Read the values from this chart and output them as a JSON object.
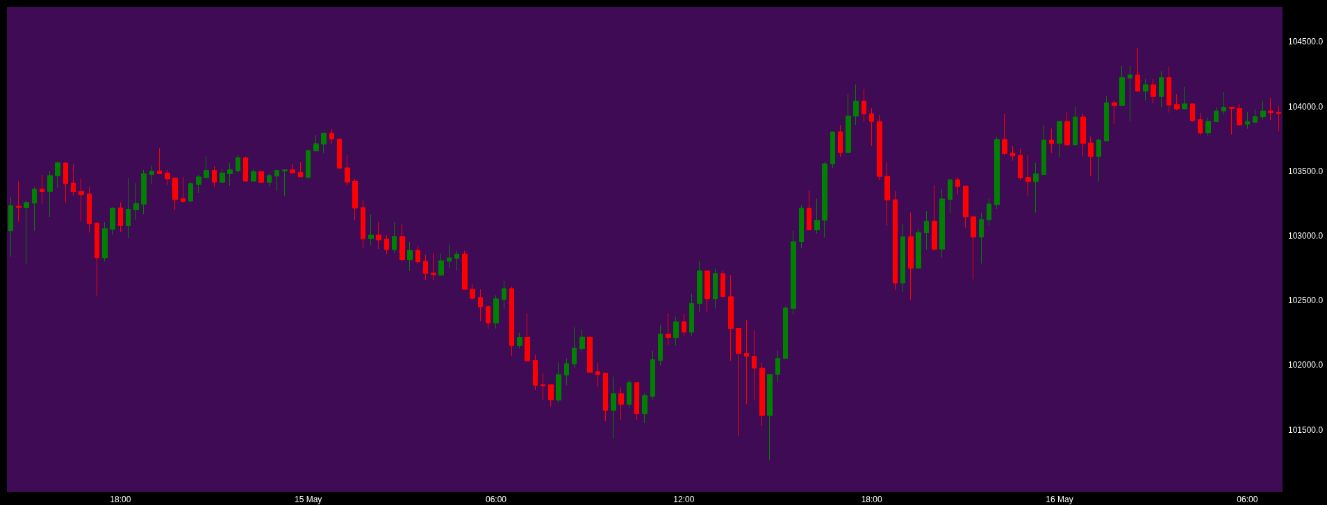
{
  "chart_data": {
    "type": "candlestick",
    "categories": [
      null,
      null,
      null,
      null,
      null,
      null,
      null,
      null,
      null,
      null,
      null,
      null,
      null,
      null,
      "18:00",
      null,
      null,
      null,
      null,
      null,
      null,
      null,
      null,
      null,
      null,
      null,
      null,
      null,
      null,
      null,
      null,
      null,
      null,
      null,
      null,
      null,
      null,
      null,
      "15 May",
      null,
      null,
      null,
      null,
      null,
      null,
      null,
      null,
      null,
      null,
      null,
      null,
      null,
      null,
      null,
      null,
      null,
      null,
      null,
      null,
      null,
      null,
      null,
      "06:00",
      null,
      null,
      null,
      null,
      null,
      null,
      null,
      null,
      null,
      null,
      null,
      null,
      null,
      null,
      null,
      null,
      null,
      null,
      null,
      null,
      null,
      null,
      null,
      "12:00",
      null,
      null,
      null,
      null,
      null,
      null,
      null,
      null,
      null,
      null,
      null,
      null,
      null,
      null,
      null,
      null,
      null,
      null,
      null,
      null,
      null,
      null,
      null,
      "18:00",
      null,
      null,
      null,
      null,
      null,
      null,
      null,
      null,
      null,
      null,
      null,
      null,
      null,
      null,
      null,
      null,
      null,
      null,
      null,
      null,
      null,
      null,
      null,
      "16 May",
      null,
      null,
      null,
      null,
      null,
      null,
      null,
      null,
      null,
      null,
      null,
      null,
      null,
      null,
      null,
      null,
      null,
      null,
      null,
      null,
      null,
      null,
      null,
      "06:00",
      null,
      null,
      null,
      null
    ],
    "ohlc": [
      [
        103039,
        103298,
        102839,
        103233
      ],
      [
        103229,
        103421,
        103110,
        103219
      ],
      [
        103217,
        103268,
        102778,
        103258
      ],
      [
        103253,
        103377,
        103039,
        103361
      ],
      [
        103361,
        103472,
        103249,
        103340
      ],
      [
        103342,
        103502,
        103144,
        103466
      ],
      [
        103464,
        103575,
        103373,
        103565
      ],
      [
        103563,
        103570,
        103255,
        103405
      ],
      [
        103407,
        103553,
        103308,
        103340
      ],
      [
        103344,
        103442,
        103110,
        103318
      ],
      [
        103324,
        103381,
        103025,
        103094
      ],
      [
        103098,
        103106,
        102537,
        102829
      ],
      [
        102829,
        103106,
        102804,
        103055
      ],
      [
        103051,
        103221,
        103007,
        103213
      ],
      [
        103215,
        103258,
        103031,
        103077
      ],
      [
        103077,
        103446,
        102982,
        103205
      ],
      [
        103201,
        103407,
        103124,
        103249
      ],
      [
        103245,
        103510,
        103165,
        103480
      ],
      [
        103474,
        103545,
        103403,
        103500
      ],
      [
        103500,
        103678,
        103478,
        103480
      ],
      [
        103486,
        103510,
        103391,
        103440
      ],
      [
        103446,
        103450,
        103201,
        103280
      ],
      [
        103288,
        103452,
        103255,
        103266
      ],
      [
        103268,
        103415,
        103264,
        103403
      ],
      [
        103397,
        103470,
        103332,
        103456
      ],
      [
        103450,
        103615,
        103442,
        103506
      ],
      [
        103506,
        103539,
        103377,
        103415
      ],
      [
        103413,
        103516,
        103413,
        103486
      ],
      [
        103480,
        103565,
        103387,
        103510
      ],
      [
        103502,
        103628,
        103490,
        103605
      ],
      [
        103603,
        103615,
        103420,
        103423
      ],
      [
        103423,
        103516,
        103417,
        103496
      ],
      [
        103496,
        103500,
        103407,
        103413
      ],
      [
        103413,
        103480,
        103383,
        103466
      ],
      [
        103462,
        103510,
        103347,
        103506
      ],
      [
        103502,
        103510,
        103308,
        103510
      ],
      [
        103510,
        103555,
        103486,
        103486
      ],
      [
        103490,
        103569,
        103456,
        103456
      ],
      [
        103452,
        103668,
        103442,
        103660
      ],
      [
        103656,
        103779,
        103656,
        103713
      ],
      [
        103709,
        103798,
        103640,
        103793
      ],
      [
        103793,
        103826,
        103709,
        103749
      ],
      [
        103749,
        103749,
        103522,
        103522
      ],
      [
        103526,
        103624,
        103387,
        103415
      ],
      [
        103421,
        103442,
        103120,
        103215
      ],
      [
        103219,
        103272,
        102908,
        102978
      ],
      [
        102978,
        103164,
        102926,
        103005
      ],
      [
        103005,
        103106,
        102898,
        102968
      ],
      [
        102976,
        103005,
        102857,
        102893
      ],
      [
        102893,
        103106,
        102867,
        102995
      ],
      [
        102995,
        103094,
        102809,
        102814
      ],
      [
        102814,
        102952,
        102728,
        102889
      ],
      [
        102889,
        102920,
        102784,
        102798
      ],
      [
        102804,
        102853,
        102659,
        102709
      ],
      [
        102711,
        102869,
        102655,
        102699
      ],
      [
        102695,
        102863,
        102695,
        102807
      ],
      [
        102804,
        102932,
        102748,
        102829
      ],
      [
        102827,
        102883,
        102730,
        102859
      ],
      [
        102859,
        102883,
        102584,
        102586
      ],
      [
        102586,
        102626,
        102501,
        102517
      ],
      [
        102523,
        102586,
        102339,
        102451
      ],
      [
        102453,
        102463,
        102279,
        102325
      ],
      [
        102325,
        102540,
        102283,
        102513
      ],
      [
        102507,
        102651,
        102434,
        102592
      ],
      [
        102592,
        102606,
        102072,
        102151
      ],
      [
        102151,
        102250,
        102131,
        102214
      ],
      [
        102214,
        102402,
        102032,
        102032
      ],
      [
        102036,
        102082,
        101809,
        101844
      ],
      [
        101848,
        101939,
        101726,
        101840
      ],
      [
        101848,
        101848,
        101676,
        101731
      ],
      [
        101729,
        102022,
        101710,
        101927
      ],
      [
        101923,
        102052,
        101844,
        102012
      ],
      [
        102008,
        102293,
        101979,
        102131
      ],
      [
        102127,
        102275,
        102105,
        102216
      ],
      [
        102216,
        102216,
        101943,
        101943
      ],
      [
        101949,
        102018,
        101834,
        101927
      ],
      [
        101937,
        101943,
        101567,
        101650
      ],
      [
        101650,
        101911,
        101429,
        101779
      ],
      [
        101779,
        101828,
        101577,
        101696
      ],
      [
        101696,
        101884,
        101670,
        101864
      ],
      [
        101864,
        101864,
        101577,
        101623
      ],
      [
        101623,
        101781,
        101551,
        101765
      ],
      [
        101759,
        102111,
        101735,
        102042
      ],
      [
        102036,
        102309,
        101998,
        102240
      ],
      [
        102240,
        102402,
        102157,
        102214
      ],
      [
        102212,
        102374,
        102152,
        102335
      ],
      [
        102335,
        102399,
        102223,
        102255
      ],
      [
        102255,
        102550,
        102223,
        102477
      ],
      [
        102477,
        102800,
        102412,
        102729
      ],
      [
        102729,
        102729,
        102412,
        102513
      ],
      [
        102513,
        102746,
        102438,
        102707
      ],
      [
        102707,
        102729,
        102529,
        102529
      ],
      [
        102529,
        102696,
        102034,
        102283
      ],
      [
        102283,
        102283,
        101453,
        102090
      ],
      [
        102090,
        102352,
        101696,
        102068
      ],
      [
        102068,
        102270,
        101733,
        101976
      ],
      [
        101976,
        102019,
        101530,
        101610
      ],
      [
        101610,
        101928,
        101266,
        101928
      ],
      [
        101928,
        102115,
        101868,
        102051
      ],
      [
        102051,
        102455,
        102051,
        102442
      ],
      [
        102438,
        103040,
        102391,
        102954
      ],
      [
        102954,
        103238,
        102905,
        103213
      ],
      [
        103213,
        103352,
        103045,
        103045
      ],
      [
        103045,
        103288,
        103015,
        103120
      ],
      [
        103120,
        103567,
        102987,
        103557
      ],
      [
        103557,
        103804,
        103524,
        103804
      ],
      [
        103804,
        103858,
        103610,
        103643
      ],
      [
        103643,
        104099,
        103643,
        103927
      ],
      [
        103927,
        104170,
        103858,
        104041
      ],
      [
        104041,
        104137,
        103884,
        103944
      ],
      [
        103944,
        103987,
        103696,
        103884
      ],
      [
        103884,
        103933,
        103432,
        103460
      ],
      [
        103460,
        103567,
        103077,
        103277
      ],
      [
        103279,
        103348,
        102580,
        102635
      ],
      [
        102635,
        103090,
        102564,
        102993
      ],
      [
        102993,
        103179,
        102502,
        102749
      ],
      [
        102749,
        103053,
        102742,
        103026
      ],
      [
        103024,
        103192,
        102893,
        103112
      ],
      [
        103112,
        103392,
        102882,
        102897
      ],
      [
        102897,
        103359,
        102831,
        103285
      ],
      [
        103281,
        103434,
        103175,
        103434
      ],
      [
        103434,
        103452,
        103319,
        103381
      ],
      [
        103385,
        103385,
        103064,
        103146
      ],
      [
        103148,
        103148,
        102664,
        102990
      ],
      [
        102990,
        103179,
        102786,
        103126
      ],
      [
        103124,
        103286,
        103081,
        103246
      ],
      [
        103241,
        103767,
        103208,
        103745
      ],
      [
        103745,
        103945,
        103623,
        103636
      ],
      [
        103641,
        103696,
        103581,
        103618
      ],
      [
        103623,
        103674,
        103434,
        103448
      ],
      [
        103452,
        103623,
        103308,
        103419
      ],
      [
        103419,
        103563,
        103179,
        103479
      ],
      [
        103474,
        103856,
        103474,
        103740
      ],
      [
        103740,
        103829,
        103641,
        103714
      ],
      [
        103714,
        103885,
        103607,
        103885
      ],
      [
        103885,
        103956,
        103703,
        103703
      ],
      [
        103703,
        104000,
        103703,
        103918
      ],
      [
        103918,
        103945,
        103618,
        103714
      ],
      [
        103718,
        103769,
        103459,
        103614
      ],
      [
        103614,
        103751,
        103419,
        103740
      ],
      [
        103734,
        104080,
        103734,
        104029
      ],
      [
        104029,
        104047,
        103862,
        104007
      ],
      [
        104007,
        104314,
        104007,
        104224
      ],
      [
        104219,
        104314,
        103885,
        104244
      ],
      [
        104244,
        104451,
        104115,
        104120
      ],
      [
        104120,
        104214,
        104047,
        104169
      ],
      [
        104169,
        104214,
        104022,
        104077
      ],
      [
        104077,
        104272,
        103995,
        104224
      ],
      [
        104224,
        104306,
        103952,
        104010
      ],
      [
        104015,
        104095,
        103970,
        103982
      ],
      [
        103982,
        104152,
        103977,
        104020
      ],
      [
        104020,
        104020,
        103883,
        103890
      ],
      [
        103898,
        103948,
        103778,
        103795
      ],
      [
        103795,
        103915,
        103773,
        103885
      ],
      [
        103883,
        103995,
        103878,
        103965
      ],
      [
        103965,
        104110,
        103933,
        103995
      ],
      [
        103995,
        103995,
        103783,
        103985
      ],
      [
        103985,
        104022,
        103853,
        103858
      ],
      [
        103863,
        103957,
        103828,
        103883
      ],
      [
        103878,
        103977,
        103873,
        103923
      ],
      [
        103920,
        104045,
        103898,
        103965
      ],
      [
        103965,
        104065,
        103895,
        103952
      ],
      [
        103955,
        104002,
        103808,
        103945
      ]
    ],
    "colors": [
      "#008000",
      "#ff0000",
      "#008000",
      "#008000",
      "#ff0000",
      "#008000",
      "#008000",
      "#ff0000",
      "#ff0000",
      "#ff0000",
      "#ff0000",
      "#ff0000",
      "#008000",
      "#008000",
      "#ff0000",
      "#008000",
      "#008000",
      "#008000",
      "#008000",
      "#ff0000",
      "#ff0000",
      "#ff0000",
      "#ff0000",
      "#008000",
      "#008000",
      "#008000",
      "#ff0000",
      "#008000",
      "#008000",
      "#008000",
      "#ff0000",
      "#008000",
      "#ff0000",
      "#008000",
      "#008000",
      "#008000",
      "#ff0000",
      "#ff0000",
      "#008000",
      "#008000",
      "#008000",
      "#ff0000",
      "#ff0000",
      "#ff0000",
      "#ff0000",
      "#ff0000",
      "#008000",
      "#ff0000",
      "#ff0000",
      "#008000",
      "#ff0000",
      "#008000",
      "#ff0000",
      "#ff0000",
      "#ff0000",
      "#008000",
      "#008000",
      "#008000",
      "#ff0000",
      "#ff0000",
      "#ff0000",
      "#ff0000",
      "#008000",
      "#008000",
      "#ff0000",
      "#008000",
      "#ff0000",
      "#ff0000",
      "#ff0000",
      "#ff0000",
      "#008000",
      "#008000",
      "#008000",
      "#008000",
      "#ff0000",
      "#ff0000",
      "#ff0000",
      "#008000",
      "#ff0000",
      "#008000",
      "#ff0000",
      "#008000",
      "#008000",
      "#008000",
      "#ff0000",
      "#008000",
      "#ff0000",
      "#008000",
      "#008000",
      "#ff0000",
      "#008000",
      "#ff0000",
      "#ff0000",
      "#ff0000",
      "#ff0000",
      "#ff0000",
      "#ff0000",
      "#008000",
      "#008000",
      "#008000",
      "#008000",
      "#008000",
      "#ff0000",
      "#008000",
      "#008000",
      "#008000",
      "#ff0000",
      "#008000",
      "#008000",
      "#ff0000",
      "#ff0000",
      "#ff0000",
      "#ff0000",
      "#ff0000",
      "#008000",
      "#ff0000",
      "#008000",
      "#008000",
      "#ff0000",
      "#008000",
      "#008000",
      "#ff0000",
      "#ff0000",
      "#ff0000",
      "#008000",
      "#008000",
      "#008000",
      "#ff0000",
      "#ff0000",
      "#ff0000",
      "#ff0000",
      "#008000",
      "#008000",
      "#ff0000",
      "#008000",
      "#ff0000",
      "#008000",
      "#ff0000",
      "#ff0000",
      "#008000",
      "#008000",
      "#ff0000",
      "#008000",
      "#008000",
      "#ff0000",
      "#008000",
      "#ff0000",
      "#008000",
      "#ff0000",
      "#ff0000",
      "#008000",
      "#ff0000",
      "#ff0000",
      "#008000",
      "#008000",
      "#008000",
      "#ff0000",
      "#ff0000",
      "#008000",
      "#008000",
      "#008000",
      "#ff0000",
      "#ff0000"
    ],
    "ylim": [
      101020,
      104770
    ],
    "yticks": [
      {
        "value": 101500,
        "label": "101500.0"
      },
      {
        "value": 102000,
        "label": "102000.0"
      },
      {
        "value": 102500,
        "label": "102500.0"
      },
      {
        "value": 103000,
        "label": "103000.0"
      },
      {
        "value": 103500,
        "label": "103500.0"
      },
      {
        "value": 104000,
        "label": "104000.0"
      },
      {
        "value": 104500,
        "label": "104500.0"
      }
    ],
    "grid": false
  }
}
